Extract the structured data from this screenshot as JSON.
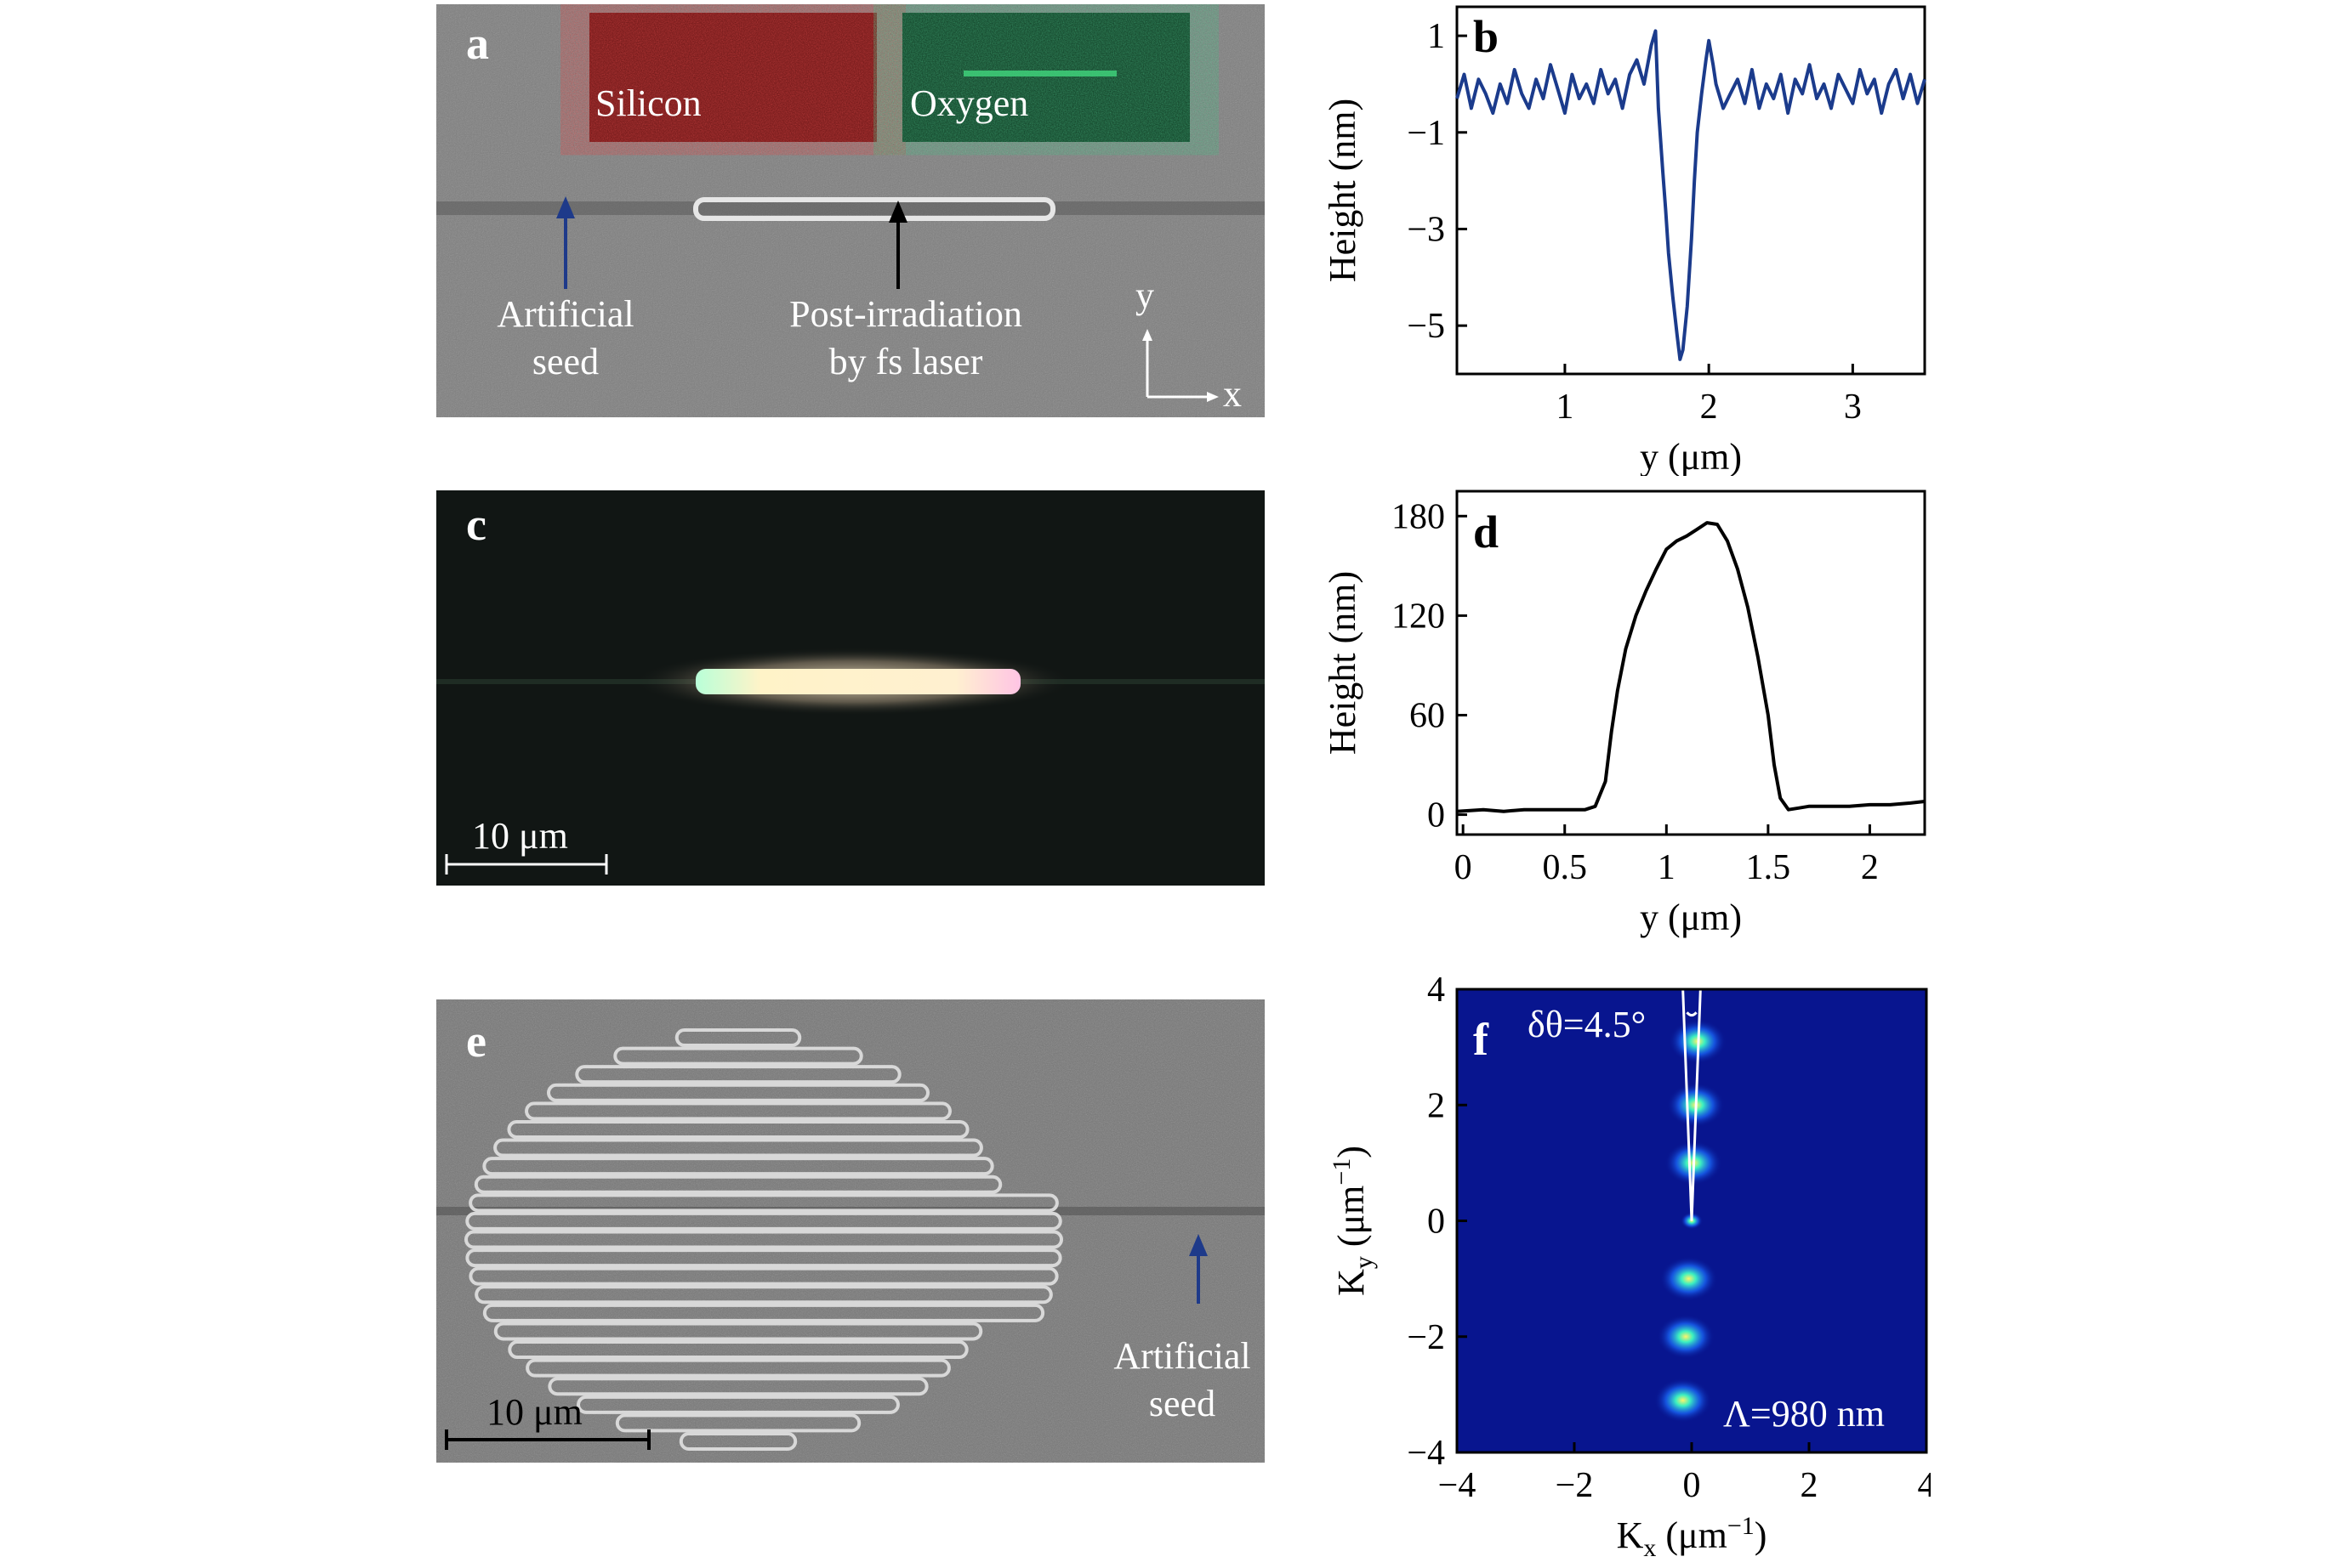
{
  "panel_a": {
    "letter": "a",
    "inset_left_label": "Silicon",
    "inset_right_label": "Oxygen",
    "annotation_left_line1": "Artificial",
    "annotation_left_line2": "seed",
    "annotation_right_line1": "Post-irradiation",
    "annotation_right_line2": "by fs laser",
    "axis_y": "y",
    "axis_x": "x",
    "colors": {
      "seed_arrow": "#1e3a8a",
      "laser_arrow": "#000000",
      "silicon": "#7a1a1a",
      "oxygen": "#0f4a2a"
    }
  },
  "panel_c": {
    "letter": "c",
    "scalebar_label": "10 μm"
  },
  "panel_e": {
    "letter": "e",
    "scalebar_label": "10 μm",
    "annotation_line1": "Artificial",
    "annotation_line2": "seed"
  },
  "panel_f": {
    "annotation_angle": "δθ=4.5°",
    "annotation_period": "Λ=980 nm"
  },
  "chart_data": [
    {
      "panel": "b",
      "type": "line",
      "xlabel": "y (μm)",
      "ylabel": "Height (nm)",
      "xlim": [
        0.25,
        3.5
      ],
      "ylim": [
        -6.0,
        1.6
      ],
      "xticks": [
        1,
        2,
        3
      ],
      "yticks": [
        1,
        -1,
        -3,
        -5
      ],
      "color": "#1b3b8c",
      "x": [
        0.25,
        0.3,
        0.35,
        0.4,
        0.45,
        0.5,
        0.55,
        0.6,
        0.65,
        0.7,
        0.75,
        0.8,
        0.85,
        0.9,
        0.95,
        1.0,
        1.05,
        1.1,
        1.15,
        1.2,
        1.25,
        1.3,
        1.35,
        1.4,
        1.45,
        1.5,
        1.55,
        1.6,
        1.63,
        1.65,
        1.68,
        1.7,
        1.72,
        1.75,
        1.78,
        1.8,
        1.82,
        1.85,
        1.88,
        1.9,
        1.92,
        1.95,
        1.98,
        2.0,
        2.03,
        2.05,
        2.08,
        2.1,
        2.15,
        2.2,
        2.25,
        2.3,
        2.35,
        2.4,
        2.45,
        2.5,
        2.55,
        2.6,
        2.65,
        2.7,
        2.75,
        2.8,
        2.85,
        2.9,
        2.95,
        3.0,
        3.05,
        3.1,
        3.15,
        3.2,
        3.25,
        3.3,
        3.35,
        3.4,
        3.45,
        3.5
      ],
      "y": [
        -0.3,
        0.2,
        -0.5,
        0.1,
        -0.2,
        -0.6,
        0.0,
        -0.4,
        0.3,
        -0.2,
        -0.5,
        0.1,
        -0.3,
        0.4,
        -0.1,
        -0.6,
        0.2,
        -0.3,
        0.0,
        -0.4,
        0.3,
        -0.2,
        0.1,
        -0.5,
        0.2,
        0.5,
        0.0,
        0.8,
        1.1,
        -0.5,
        -1.8,
        -2.6,
        -3.5,
        -4.4,
        -5.2,
        -5.7,
        -5.5,
        -4.6,
        -3.2,
        -2.0,
        -1.0,
        -0.2,
        0.5,
        0.9,
        0.4,
        0.0,
        -0.3,
        -0.5,
        -0.2,
        0.1,
        -0.4,
        0.3,
        -0.5,
        0.0,
        -0.3,
        0.2,
        -0.6,
        0.1,
        -0.2,
        0.4,
        -0.3,
        0.0,
        -0.5,
        0.2,
        -0.1,
        -0.4,
        0.3,
        -0.2,
        0.1,
        -0.6,
        0.0,
        0.3,
        -0.3,
        0.2,
        -0.4,
        0.1
      ]
    },
    {
      "panel": "d",
      "type": "line",
      "xlabel": "y (μm)",
      "ylabel": "Height (nm)",
      "xlim": [
        -0.03,
        2.27
      ],
      "ylim": [
        -12,
        195
      ],
      "xticks": [
        0,
        0.5,
        1,
        1.5,
        2
      ],
      "xticklabels": [
        "0",
        "0.5",
        "1",
        "1.5",
        "2"
      ],
      "yticks": [
        0,
        60,
        120,
        180
      ],
      "color": "#000000",
      "x": [
        -0.03,
        0.1,
        0.2,
        0.3,
        0.4,
        0.5,
        0.6,
        0.65,
        0.7,
        0.73,
        0.76,
        0.8,
        0.85,
        0.9,
        0.95,
        1.0,
        1.05,
        1.1,
        1.15,
        1.2,
        1.25,
        1.3,
        1.35,
        1.4,
        1.45,
        1.5,
        1.53,
        1.56,
        1.6,
        1.65,
        1.7,
        1.8,
        1.9,
        2.0,
        2.1,
        2.2,
        2.27
      ],
      "y": [
        2,
        3,
        2,
        3,
        3,
        3,
        3,
        5,
        20,
        50,
        75,
        100,
        120,
        135,
        148,
        160,
        165,
        168,
        172,
        176,
        175,
        165,
        148,
        125,
        95,
        60,
        30,
        10,
        3,
        4,
        5,
        5,
        5,
        6,
        6,
        7,
        8
      ]
    },
    {
      "panel": "f",
      "type": "heatmap",
      "xlabel": "K_x (μm⁻¹)",
      "ylabel": "K_y (μm⁻¹)",
      "xlim": [
        -4,
        4
      ],
      "ylim": [
        -4,
        4
      ],
      "xticks": [
        -4,
        -2,
        0,
        2,
        4
      ],
      "yticks": [
        -4,
        -2,
        0,
        2,
        4
      ],
      "background": "#08158f",
      "peaks": [
        {
          "kx": 0.1,
          "ky": 3.1
        },
        {
          "kx": 0.07,
          "ky": 2.0
        },
        {
          "kx": 0.03,
          "ky": 1.0
        },
        {
          "kx": 0.0,
          "ky": 0.0
        },
        {
          "kx": -0.05,
          "ky": -1.0
        },
        {
          "kx": -0.1,
          "ky": -2.0
        },
        {
          "kx": -0.15,
          "ky": -3.1
        }
      ]
    }
  ]
}
